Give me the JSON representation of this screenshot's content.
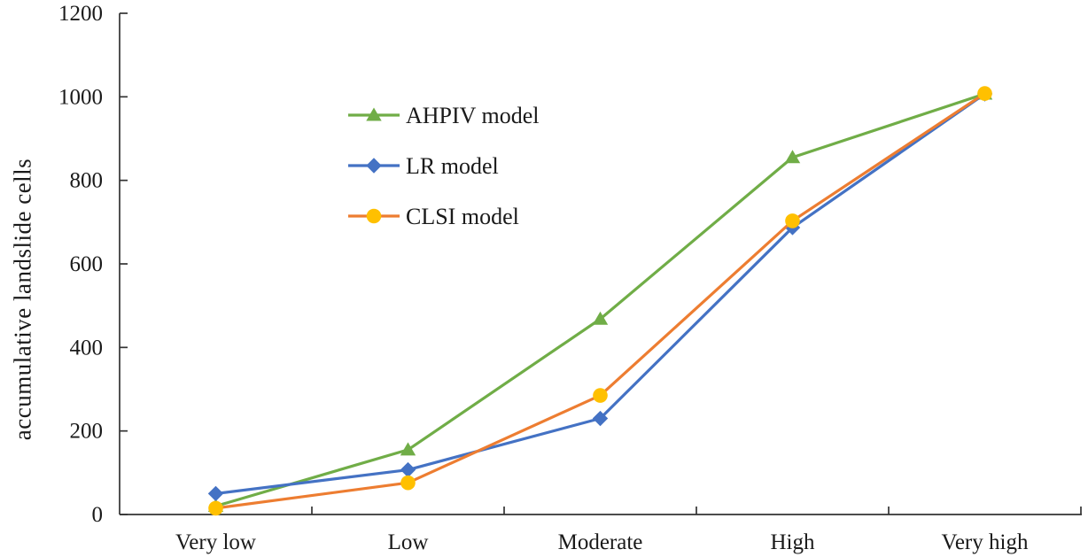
{
  "chart_data": {
    "type": "line",
    "title": "",
    "xlabel": "",
    "ylabel": "accumulative landslide cells",
    "categories": [
      "Very low",
      "Low",
      "Moderate",
      "High",
      "Very high"
    ],
    "ylim": [
      0,
      1200
    ],
    "yticks": [
      0,
      200,
      400,
      600,
      800,
      1000,
      1200
    ],
    "grid": false,
    "legend_position": "inside-upper-left",
    "axis_color": "#333333",
    "text_color": "#1a1a1a",
    "series": [
      {
        "name": "AHPIV model",
        "line_color": "#70AD47",
        "marker": "triangle",
        "marker_fill": "#70AD47",
        "values": [
          20,
          155,
          468,
          855,
          1007
        ]
      },
      {
        "name": "LR model",
        "line_color": "#4472C4",
        "marker": "diamond",
        "marker_fill": "#4472C4",
        "values": [
          50,
          107,
          230,
          687,
          1007
        ]
      },
      {
        "name": "CLSI model",
        "line_color": "#ED7D31",
        "marker": "circle",
        "marker_fill": "#FFC000",
        "values": [
          15,
          76,
          285,
          703,
          1008
        ]
      }
    ]
  }
}
